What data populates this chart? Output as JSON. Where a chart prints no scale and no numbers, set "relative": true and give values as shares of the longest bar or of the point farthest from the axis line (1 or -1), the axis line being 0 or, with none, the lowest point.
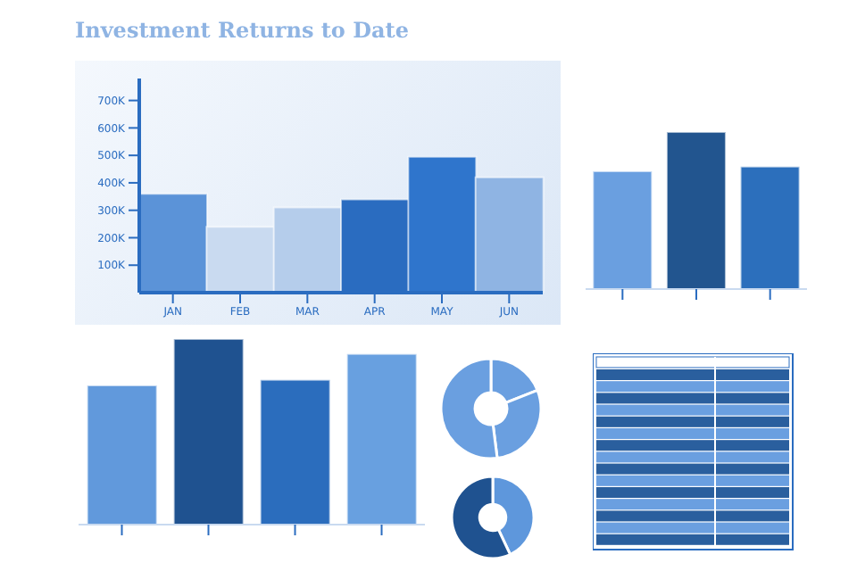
{
  "chart_data": [
    {
      "type": "bar",
      "title": "Investment Returns to Date",
      "categories": [
        "JAN",
        "FEB",
        "MAR",
        "APR",
        "MAY",
        "JUN"
      ],
      "values": [
        360000,
        240000,
        310000,
        340000,
        495000,
        420000
      ],
      "colors": [
        "#5b93d8",
        "#c9daf0",
        "#b5cdeb",
        "#2a6cc0",
        "#2f75cc",
        "#8fb4e3"
      ],
      "ylim": [
        0,
        780000
      ],
      "yticks": [
        {
          "value": 100000,
          "label": "100K"
        },
        {
          "value": 200000,
          "label": "200K"
        },
        {
          "value": 300000,
          "label": "300K"
        },
        {
          "value": 400000,
          "label": "400K"
        },
        {
          "value": 500000,
          "label": "500K"
        },
        {
          "value": 600000,
          "label": "600K"
        },
        {
          "value": 700000,
          "label": "700K"
        }
      ]
    },
    {
      "type": "bar",
      "relative": true,
      "categories": [
        null,
        null,
        null
      ],
      "values": [
        0.75,
        1,
        0.78
      ],
      "colors": [
        "#6a9fe0",
        "#22558f",
        "#2c6fbc"
      ]
    },
    {
      "type": "bar",
      "relative": true,
      "categories": [
        null,
        null,
        null,
        null
      ],
      "values": [
        0.75,
        1,
        0.78,
        0.92
      ],
      "colors": [
        "#6199dc",
        "#1f5290",
        "#2b6dbd",
        "#68a0e0"
      ]
    },
    {
      "type": "donut",
      "categories": [
        null,
        null,
        null
      ],
      "values": [
        19,
        29,
        52
      ],
      "colors": [
        "#6a9fe0",
        "#6a9fe0",
        "#6a9fe0"
      ]
    },
    {
      "type": "donut",
      "categories": [
        null,
        null
      ],
      "values": [
        43,
        57
      ],
      "colors": [
        "#5e97dc",
        "#1f5290"
      ]
    }
  ]
}
